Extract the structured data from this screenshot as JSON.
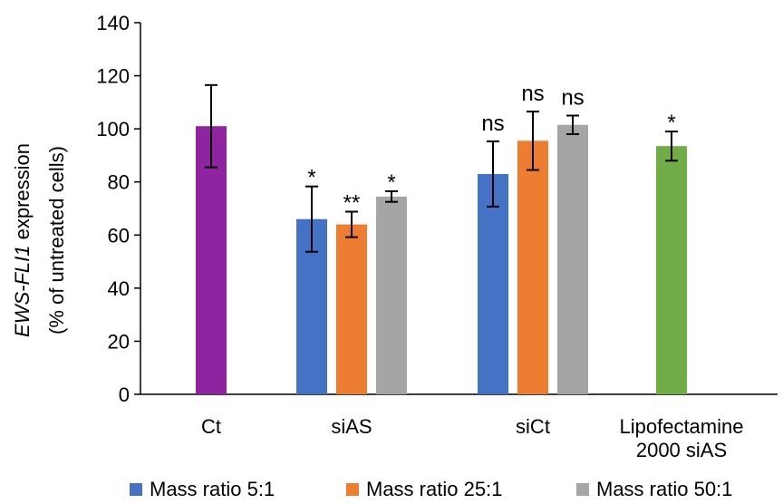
{
  "chart_data": {
    "type": "bar",
    "ylabel_italic": "EWS-FLI1",
    "ylabel_rest": " expression",
    "ylabel_line2": "(% of untreated cells)",
    "ylim": [
      0,
      140
    ],
    "yticks": [
      0,
      20,
      40,
      60,
      80,
      100,
      120,
      140
    ],
    "grid": false,
    "legend_position": "bottom",
    "groups": [
      {
        "label": [
          "Ct"
        ],
        "bars": [
          {
            "value": 101,
            "err": 15.5,
            "sig": "",
            "color": "#8e24a0"
          }
        ]
      },
      {
        "label": [
          "siAS"
        ],
        "bars": [
          {
            "value": 66,
            "err": 12.3,
            "sig": "*",
            "color": "#4472c4",
            "series": 0
          },
          {
            "value": 64,
            "err": 4.8,
            "sig": "**",
            "color": "#ed7d31",
            "series": 1
          },
          {
            "value": 74.5,
            "err": 2.0,
            "sig": "*",
            "color": "#a5a5a5",
            "series": 2
          }
        ]
      },
      {
        "label": [
          "siCt"
        ],
        "bars": [
          {
            "value": 83,
            "err": 12.3,
            "sig": "ns",
            "color": "#4472c4",
            "series": 0
          },
          {
            "value": 95.5,
            "err": 11.0,
            "sig": "ns",
            "color": "#ed7d31",
            "series": 1
          },
          {
            "value": 101.5,
            "err": 3.5,
            "sig": "ns",
            "color": "#a5a5a5",
            "series": 2
          }
        ]
      },
      {
        "label": [
          "Lipofectamine",
          "2000 siAS"
        ],
        "bars": [
          {
            "value": 93.5,
            "err": 5.5,
            "sig": "*",
            "color": "#70ad47"
          }
        ]
      }
    ],
    "legend": [
      {
        "name": "Mass ratio 5:1",
        "color": "#4472c4"
      },
      {
        "name": "Mass ratio 25:1",
        "color": "#ed7d31"
      },
      {
        "name": "Mass ratio 50:1",
        "color": "#a5a5a5"
      }
    ]
  }
}
